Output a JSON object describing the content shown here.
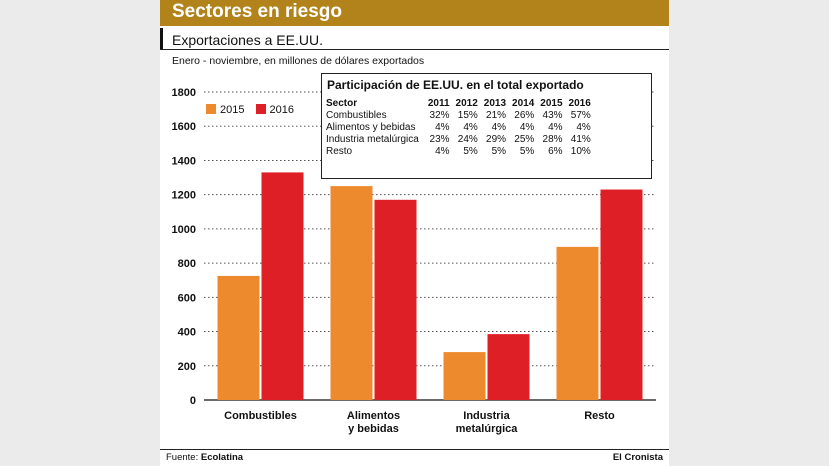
{
  "header": {
    "title": "Sectores en riesgo"
  },
  "subtitle": "Exportaciones a EE.UU.",
  "description": "Enero - noviembre, en millones de dólares exportados",
  "colors": {
    "s2015": "#ee8a2e",
    "s2016": "#df1f26",
    "header_bg": "#b3831b"
  },
  "legend": [
    {
      "label": "2015"
    },
    {
      "label": "2016"
    }
  ],
  "chart_data": {
    "type": "bar",
    "categories": [
      "Combustibles",
      "Alimentos y bebidas",
      "Industria metalúrgica",
      "Resto"
    ],
    "category_lines": [
      [
        "Combustibles"
      ],
      [
        "Alimentos",
        "y bebidas"
      ],
      [
        "Industria",
        "metalúrgica"
      ],
      [
        "Resto"
      ]
    ],
    "series": [
      {
        "name": "2015",
        "values": [
          725,
          1250,
          280,
          895
        ]
      },
      {
        "name": "2016",
        "values": [
          1330,
          1170,
          385,
          1230
        ]
      }
    ],
    "ylim": [
      0,
      1800
    ],
    "yticks": [
      0,
      200,
      400,
      600,
      800,
      1000,
      1200,
      1400,
      1600,
      1800
    ],
    "grid": true,
    "legend_position": "top-left"
  },
  "share_table": {
    "title": "Participación de EE.UU. en el total exportado",
    "headers": [
      "Sector",
      "2011",
      "2012",
      "2013",
      "2014",
      "2015",
      "2016"
    ],
    "rows": [
      [
        "Combustibles",
        "32%",
        "15%",
        "21%",
        "26%",
        "43%",
        "57%"
      ],
      [
        "Alimentos y bebidas",
        "4%",
        "4%",
        "4%",
        "4%",
        "4%",
        "4%"
      ],
      [
        "Industria metalúrgica",
        "23%",
        "24%",
        "29%",
        "25%",
        "28%",
        "41%"
      ],
      [
        "Resto",
        "4%",
        "5%",
        "5%",
        "5%",
        "6%",
        "10%"
      ]
    ]
  },
  "footer": {
    "source_label": "Fuente:",
    "source_name": "Ecolatina",
    "publisher": "El Cronista"
  }
}
